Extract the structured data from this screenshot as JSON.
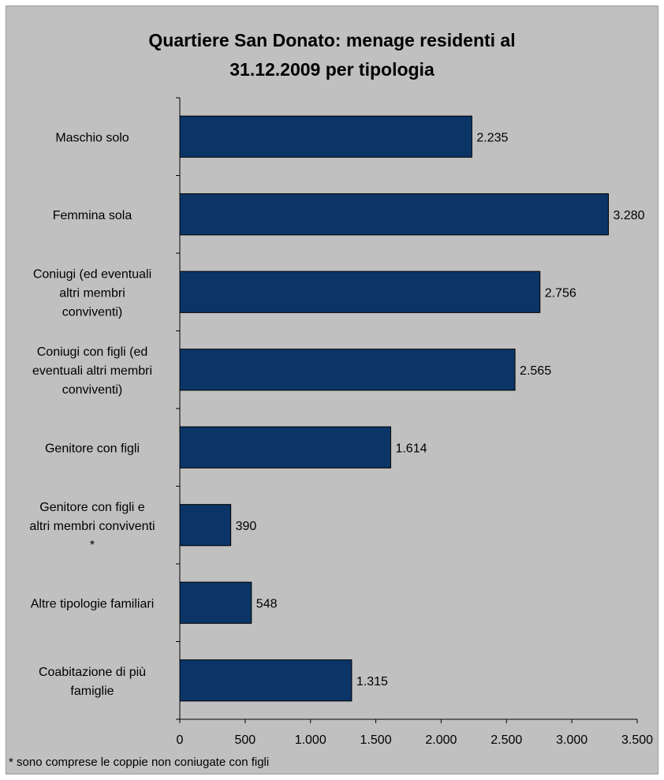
{
  "chart_data": {
    "type": "bar",
    "orientation": "horizontal",
    "title_lines": [
      "Quartiere San Donato: menage residenti al",
      "31.12.2009 per tipologia"
    ],
    "categories": [
      [
        "Maschio solo"
      ],
      [
        "Femmina sola"
      ],
      [
        "Coniugi (ed eventuali",
        "altri membri",
        "conviventi)"
      ],
      [
        "Coniugi con figli (ed",
        "eventuali altri membri",
        "conviventi)"
      ],
      [
        "Genitore con figli"
      ],
      [
        "Genitore con figli e",
        "altri membri conviventi",
        "*"
      ],
      [
        "Altre tipologie familiari"
      ],
      [
        "Coabitazione di più",
        "famiglie"
      ]
    ],
    "values": [
      2235,
      3280,
      2756,
      2565,
      1614,
      390,
      548,
      1315
    ],
    "value_labels": [
      "2.235",
      "3.280",
      "2.756",
      "2.565",
      "1.614",
      "390",
      "548",
      "1.315"
    ],
    "xlim": [
      0,
      3500
    ],
    "x_ticks": [
      0,
      500,
      1000,
      1500,
      2000,
      2500,
      3000,
      3500
    ],
    "x_tick_labels": [
      "0",
      "500",
      "1.000",
      "1.500",
      "2.000",
      "2.500",
      "3.000",
      "3.500"
    ],
    "bar_color": "#0b3566",
    "background_color": "#c0c0c0",
    "grid": false,
    "legend": "none",
    "footnote": "* sono comprese le coppie non coniugate con figli"
  }
}
